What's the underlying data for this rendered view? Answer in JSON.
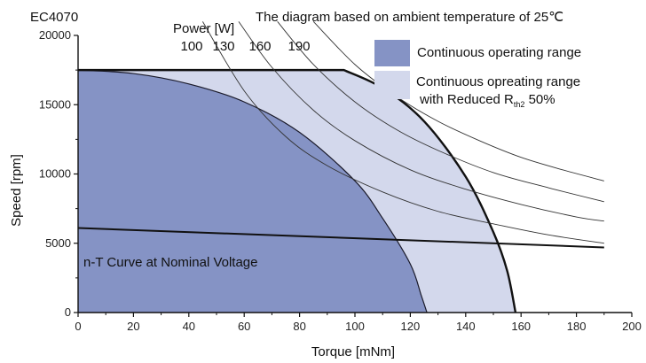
{
  "chart_data": {
    "type": "area",
    "title": "EC4070",
    "subtitle": "The diagram based on ambient temperature of 25℃",
    "xlabel": "Torque [mNm]",
    "ylabel": "Speed [rpm]",
    "xlim": [
      0,
      200
    ],
    "ylim": [
      0,
      20000
    ],
    "x_ticks": [
      0,
      20,
      40,
      60,
      80,
      100,
      120,
      140,
      160,
      180,
      200
    ],
    "y_ticks": [
      0,
      5000,
      10000,
      15000,
      20000
    ],
    "grid": false,
    "legend_position": "top-right",
    "series": [
      {
        "name": "Continuous operating range",
        "color": "#8593c5",
        "x": [
          0,
          20,
          40,
          60,
          80,
          100,
          110,
          120,
          124,
          126
        ],
        "y": [
          17500,
          17250,
          16500,
          15200,
          13000,
          9500,
          6800,
          3500,
          1200,
          0
        ]
      },
      {
        "name_lines": [
          "Continuous opreating range",
          "with Reduced R",
          "th2",
          " 50%"
        ],
        "color": "#d3d8ec",
        "x": [
          0,
          96,
          110,
          125,
          140,
          150,
          155,
          158
        ],
        "y": [
          17500,
          17500,
          16200,
          13800,
          9800,
          5800,
          3000,
          0
        ]
      }
    ],
    "ntcurve": {
      "label": "n-T Curve at Nominal Voltage",
      "x": [
        0,
        190
      ],
      "y": [
        6100,
        4700
      ]
    },
    "power_lines": {
      "label": "Power [W]",
      "values": [
        "100",
        "130",
        "160",
        "190"
      ],
      "curves": [
        {
          "x": [
            45,
            60,
            75,
            90,
            110,
            130,
            150,
            170,
            190
          ],
          "y": [
            21000,
            16000,
            12700,
            10600,
            8700,
            7300,
            6400,
            5600,
            5000
          ]
        },
        {
          "x": [
            58,
            70,
            85,
            100,
            120,
            140,
            160,
            180,
            190
          ],
          "y": [
            21000,
            17700,
            14600,
            12400,
            10300,
            8900,
            7800,
            6900,
            6600
          ]
        },
        {
          "x": [
            72,
            85,
            100,
            115,
            130,
            150,
            170,
            190
          ],
          "y": [
            21000,
            17900,
            15200,
            13200,
            11700,
            10100,
            9000,
            8000
          ]
        },
        {
          "x": [
            85,
            100,
            115,
            130,
            145,
            160,
            175,
            190
          ],
          "y": [
            21000,
            17900,
            15600,
            13800,
            12400,
            11200,
            10300,
            9500
          ]
        }
      ]
    }
  }
}
